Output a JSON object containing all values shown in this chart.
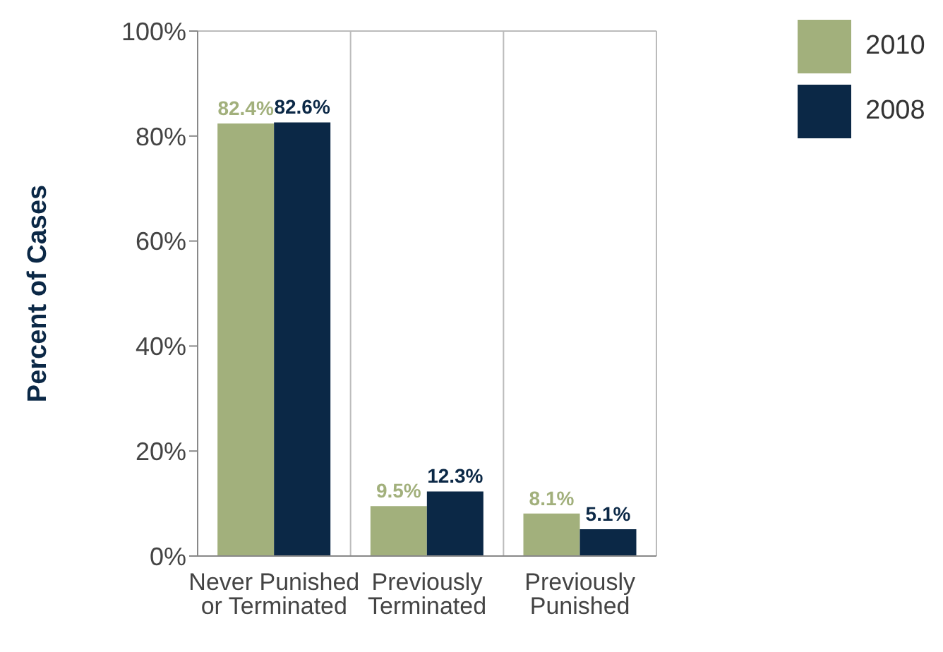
{
  "chart_data": {
    "type": "bar",
    "ylabel": "Percent of Cases",
    "categories": [
      "Never Punished or Terminated",
      "Previously Terminated",
      "Previously Punished"
    ],
    "series": [
      {
        "name": "2010",
        "color": "#a2b07c",
        "values": [
          82.4,
          9.5,
          8.1
        ],
        "value_labels": [
          "82.4%",
          "9.5%",
          "8.1%"
        ]
      },
      {
        "name": "2008",
        "color": "#0b2846",
        "values": [
          82.6,
          12.3,
          5.1
        ],
        "value_labels": [
          "82.6%",
          "12.3%",
          "5.1%"
        ]
      }
    ],
    "ylim": [
      0,
      100
    ],
    "yticks": [
      {
        "value": 0,
        "label": "0%"
      },
      {
        "value": 20,
        "label": "20%"
      },
      {
        "value": 40,
        "label": "40%"
      },
      {
        "value": 60,
        "label": "60%"
      },
      {
        "value": 80,
        "label": "80%"
      },
      {
        "value": 100,
        "label": "100%"
      }
    ],
    "grid": "x",
    "legend": "top right"
  }
}
